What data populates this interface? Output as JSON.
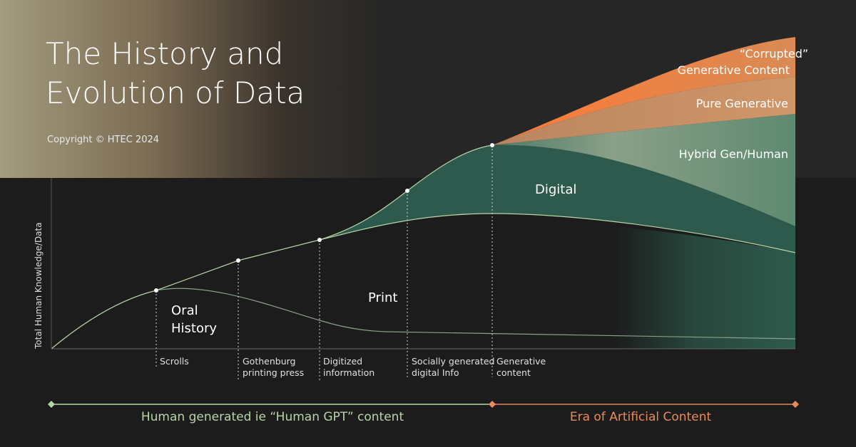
{
  "header": {
    "title_lines": [
      "The History and",
      "Evolution of Data"
    ],
    "copyright": "Copyright © HTEC 2024"
  },
  "y_axis_label": "Total Human Knowledge/Data",
  "regions": {
    "oral_history": [
      "Oral",
      "History"
    ],
    "print": "Print",
    "digital": "Digital",
    "hybrid": "Hybrid Gen/Human",
    "pure_generative": "Pure Generative",
    "corrupted": [
      "“Corrupted”",
      "Generative Content"
    ]
  },
  "milestones": [
    [
      "Scrolls"
    ],
    [
      "Gothenburg",
      "printing press"
    ],
    [
      "Digitized",
      "information"
    ],
    [
      "Socially generated",
      "digital Info"
    ],
    [
      "Generative",
      "content"
    ]
  ],
  "eras": [
    "Human generated  ie “Human GPT” content",
    "Era of Artificial Content"
  ]
}
